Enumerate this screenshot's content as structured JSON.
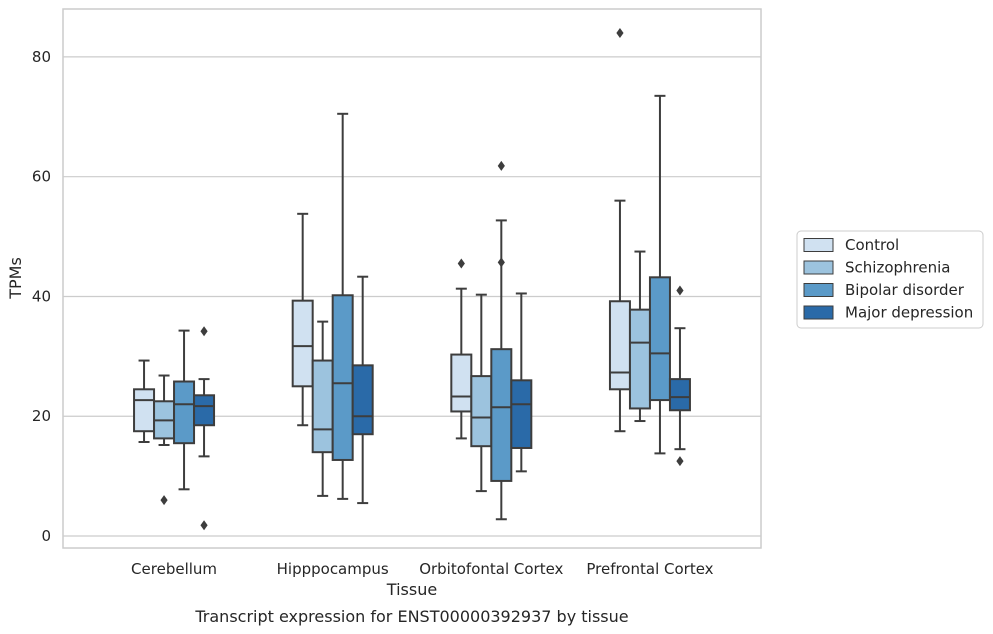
{
  "chart_data": {
    "type": "boxplot",
    "caption": "Transcript expression for ENST00000392937 by tissue",
    "xlabel": "Tissue",
    "ylabel": "TPMs",
    "ylim": [
      -2,
      88
    ],
    "yticks": [
      0,
      20,
      40,
      60,
      80
    ],
    "grid": "horizontal",
    "legend_position": "right",
    "categories": [
      "Cerebellum",
      "Hipppocampus",
      "Orbitofontal Cortex",
      "Prefrontal Cortex"
    ],
    "series": [
      {
        "name": "Control",
        "color": "#d0e1f1",
        "boxes": [
          {
            "whisker_low": 15.7,
            "q1": 17.5,
            "median": 22.7,
            "q3": 24.5,
            "whisker_high": 29.3,
            "outliers": []
          },
          {
            "whisker_low": 18.5,
            "q1": 25.0,
            "median": 31.7,
            "q3": 39.3,
            "whisker_high": 53.8,
            "outliers": []
          },
          {
            "whisker_low": 16.3,
            "q1": 20.8,
            "median": 23.3,
            "q3": 30.3,
            "whisker_high": 41.3,
            "outliers": [
              45.5
            ]
          },
          {
            "whisker_low": 17.5,
            "q1": 24.5,
            "median": 27.3,
            "q3": 39.2,
            "whisker_high": 56.0,
            "outliers": [
              84.0
            ]
          }
        ]
      },
      {
        "name": "Schizophrenia",
        "color": "#9cc3de",
        "boxes": [
          {
            "whisker_low": 15.2,
            "q1": 16.3,
            "median": 19.3,
            "q3": 22.5,
            "whisker_high": 26.8,
            "outliers": [
              6.0
            ]
          },
          {
            "whisker_low": 6.7,
            "q1": 14.0,
            "median": 17.8,
            "q3": 29.3,
            "whisker_high": 35.8,
            "outliers": []
          },
          {
            "whisker_low": 7.5,
            "q1": 15.0,
            "median": 19.8,
            "q3": 26.7,
            "whisker_high": 40.3,
            "outliers": []
          },
          {
            "whisker_low": 19.2,
            "q1": 21.3,
            "median": 32.3,
            "q3": 37.8,
            "whisker_high": 47.5,
            "outliers": []
          }
        ]
      },
      {
        "name": "Bipolar disorder",
        "color": "#5b9ac8",
        "boxes": [
          {
            "whisker_low": 7.8,
            "q1": 15.5,
            "median": 22.0,
            "q3": 25.8,
            "whisker_high": 34.3,
            "outliers": []
          },
          {
            "whisker_low": 6.2,
            "q1": 12.7,
            "median": 25.5,
            "q3": 40.2,
            "whisker_high": 70.5,
            "outliers": []
          },
          {
            "whisker_low": 2.8,
            "q1": 9.2,
            "median": 21.5,
            "q3": 31.2,
            "whisker_high": 52.7,
            "outliers": [
              45.7,
              61.8
            ]
          },
          {
            "whisker_low": 13.8,
            "q1": 22.7,
            "median": 30.5,
            "q3": 43.2,
            "whisker_high": 73.5,
            "outliers": []
          }
        ]
      },
      {
        "name": "Major depression",
        "color": "#2a6aa8",
        "boxes": [
          {
            "whisker_low": 13.3,
            "q1": 18.5,
            "median": 21.7,
            "q3": 23.5,
            "whisker_high": 26.2,
            "outliers": [
              1.8,
              34.2
            ]
          },
          {
            "whisker_low": 5.5,
            "q1": 17.0,
            "median": 20.0,
            "q3": 28.5,
            "whisker_high": 43.3,
            "outliers": []
          },
          {
            "whisker_low": 10.8,
            "q1": 14.7,
            "median": 22.0,
            "q3": 26.0,
            "whisker_high": 40.5,
            "outliers": []
          },
          {
            "whisker_low": 14.5,
            "q1": 21.0,
            "median": 23.2,
            "q3": 26.2,
            "whisker_high": 34.7,
            "outliers": [
              12.5,
              41.0
            ]
          }
        ]
      }
    ]
  }
}
